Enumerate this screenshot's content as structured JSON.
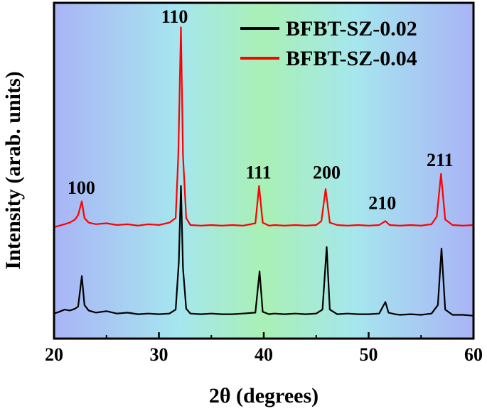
{
  "chart_data": {
    "type": "line",
    "xlabel": "2θ (degrees)",
    "ylabel": "Intensity (arab. units)",
    "xlim": [
      20,
      60
    ],
    "ylim": [
      0,
      11
    ],
    "xticks": [
      "20",
      "30",
      "40",
      "50",
      "60"
    ],
    "y_ticks_labeled": false,
    "grid": false,
    "legend_position": "top-right",
    "background_gradient": [
      "#a9b4f6",
      "#a6e6ee",
      "#a8f0b4",
      "#a6e6ee",
      "#a9b4f6"
    ],
    "series": [
      {
        "name": "BFBT-SZ-0.02",
        "color": "#000000",
        "points": [
          [
            20,
            0.82
          ],
          [
            20.5,
            0.88
          ],
          [
            21,
            0.95
          ],
          [
            21.5,
            0.92
          ],
          [
            22,
            0.98
          ],
          [
            22.3,
            1.05
          ],
          [
            22.65,
            2.05
          ],
          [
            22.9,
            1.1
          ],
          [
            23.3,
            0.92
          ],
          [
            24,
            0.85
          ],
          [
            25,
            0.9
          ],
          [
            26,
            0.82
          ],
          [
            27,
            0.85
          ],
          [
            28,
            0.8
          ],
          [
            29,
            0.82
          ],
          [
            30,
            0.8
          ],
          [
            31,
            0.82
          ],
          [
            31.6,
            0.95
          ],
          [
            31.9,
            2.5
          ],
          [
            32.1,
            5.0
          ],
          [
            32.3,
            2.3
          ],
          [
            32.6,
            0.98
          ],
          [
            33,
            0.82
          ],
          [
            34,
            0.8
          ],
          [
            35,
            0.82
          ],
          [
            36,
            0.8
          ],
          [
            37,
            0.8
          ],
          [
            38,
            0.82
          ],
          [
            39.2,
            0.85
          ],
          [
            39.6,
            2.2
          ],
          [
            39.9,
            0.88
          ],
          [
            40.5,
            0.8
          ],
          [
            41,
            0.82
          ],
          [
            42,
            0.8
          ],
          [
            43,
            0.82
          ],
          [
            44,
            0.8
          ],
          [
            45,
            0.82
          ],
          [
            45.6,
            0.95
          ],
          [
            46.0,
            3.0
          ],
          [
            46.3,
            0.95
          ],
          [
            47,
            0.8
          ],
          [
            48,
            0.82
          ],
          [
            49,
            0.8
          ],
          [
            50,
            0.8
          ],
          [
            51,
            0.82
          ],
          [
            51.6,
            1.2
          ],
          [
            51.9,
            0.85
          ],
          [
            52.5,
            0.8
          ],
          [
            53,
            0.78
          ],
          [
            54,
            0.8
          ],
          [
            55,
            0.78
          ],
          [
            56,
            0.82
          ],
          [
            56.6,
            1.1
          ],
          [
            56.95,
            2.95
          ],
          [
            57.3,
            0.95
          ],
          [
            58,
            0.78
          ],
          [
            59,
            0.78
          ],
          [
            60,
            0.75
          ]
        ]
      },
      {
        "name": "BFBT-SZ-0.04",
        "color": "#ff0000",
        "points": [
          [
            20,
            3.65
          ],
          [
            20.5,
            3.7
          ],
          [
            21,
            3.75
          ],
          [
            21.5,
            3.8
          ],
          [
            22,
            3.9
          ],
          [
            22.3,
            4.05
          ],
          [
            22.65,
            4.5
          ],
          [
            22.9,
            3.95
          ],
          [
            23.3,
            3.8
          ],
          [
            24,
            3.75
          ],
          [
            25,
            3.78
          ],
          [
            26,
            3.72
          ],
          [
            27,
            3.75
          ],
          [
            28,
            3.7
          ],
          [
            29,
            3.75
          ],
          [
            30,
            3.72
          ],
          [
            31,
            3.8
          ],
          [
            31.6,
            3.95
          ],
          [
            31.85,
            6.0
          ],
          [
            32.1,
            10.2
          ],
          [
            32.3,
            6.0
          ],
          [
            32.6,
            3.95
          ],
          [
            33,
            3.72
          ],
          [
            34,
            3.7
          ],
          [
            35,
            3.72
          ],
          [
            36,
            3.7
          ],
          [
            37,
            3.72
          ],
          [
            38,
            3.7
          ],
          [
            39.2,
            3.78
          ],
          [
            39.55,
            5.0
          ],
          [
            39.9,
            3.8
          ],
          [
            40.5,
            3.7
          ],
          [
            41,
            3.72
          ],
          [
            42,
            3.7
          ],
          [
            43,
            3.72
          ],
          [
            44,
            3.7
          ],
          [
            45,
            3.72
          ],
          [
            45.5,
            3.85
          ],
          [
            45.9,
            4.9
          ],
          [
            46.3,
            3.8
          ],
          [
            47,
            3.72
          ],
          [
            48,
            3.7
          ],
          [
            49,
            3.72
          ],
          [
            50,
            3.7
          ],
          [
            51,
            3.72
          ],
          [
            51.6,
            3.85
          ],
          [
            52,
            3.72
          ],
          [
            53,
            3.7
          ],
          [
            54,
            3.72
          ],
          [
            55,
            3.7
          ],
          [
            56,
            3.75
          ],
          [
            56.5,
            4.0
          ],
          [
            56.9,
            5.4
          ],
          [
            57.3,
            3.9
          ],
          [
            58,
            3.72
          ],
          [
            59,
            3.7
          ],
          [
            60,
            3.72
          ]
        ]
      }
    ],
    "peak_labels": [
      {
        "label": "100",
        "x": 22.6,
        "y": 4.75
      },
      {
        "label": "110",
        "x": 31.5,
        "y": 10.35
      },
      {
        "label": "111",
        "x": 39.5,
        "y": 5.25
      },
      {
        "label": "200",
        "x": 46.0,
        "y": 5.25
      },
      {
        "label": "210",
        "x": 51.3,
        "y": 4.25
      },
      {
        "label": "211",
        "x": 56.8,
        "y": 5.65
      }
    ]
  }
}
